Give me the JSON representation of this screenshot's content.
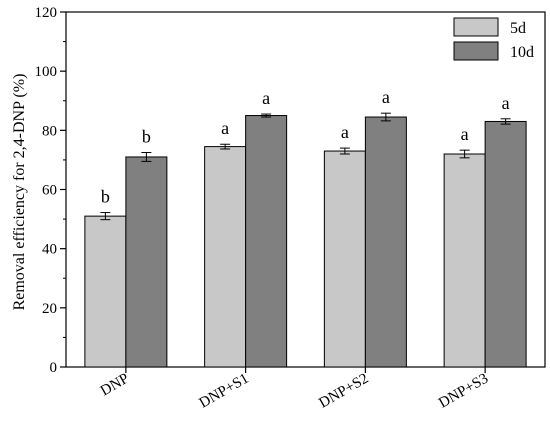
{
  "chart_data": {
    "type": "bar",
    "title": "",
    "xlabel": "",
    "ylabel": "Removal efficiency for 2,4-DNP (%)",
    "ylim": [
      0,
      120
    ],
    "yticks": [
      0,
      20,
      40,
      60,
      80,
      100,
      120
    ],
    "categories": [
      "DNP",
      "DNP+S1",
      "DNP+S2",
      "DNP+S3"
    ],
    "series": [
      {
        "name": "5d",
        "color": "#c8c8c8",
        "values": [
          51,
          74.5,
          73,
          72
        ],
        "errors": [
          1.2,
          0.8,
          1.0,
          1.3
        ],
        "significance": [
          "b",
          "a",
          "a",
          "a"
        ]
      },
      {
        "name": "10d",
        "color": "#808080",
        "values": [
          71,
          85,
          84.5,
          83
        ],
        "errors": [
          1.5,
          0.5,
          1.3,
          0.9
        ],
        "significance": [
          "b",
          "a",
          "a",
          "a"
        ]
      }
    ],
    "legend_position": "top-right",
    "grid": false
  }
}
